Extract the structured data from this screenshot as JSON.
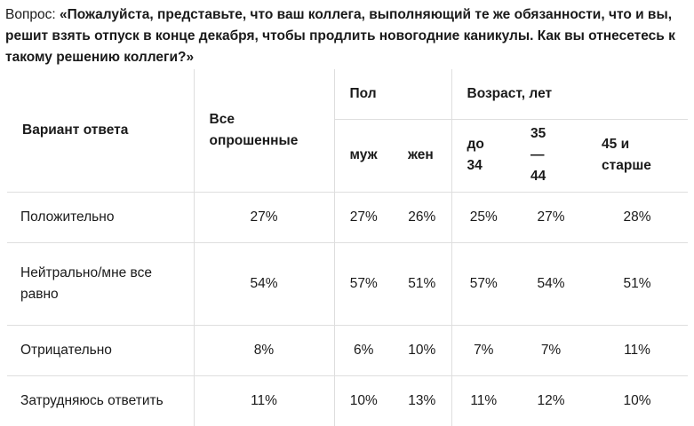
{
  "question": {
    "prefix": "Вопрос: ",
    "text": "«Пожалуйста, представьте, что ваш коллега, выполняющий те же обязанности, что и вы, решит взять отпуск в конце декабря, чтобы продлить новогодние каникулы. Как вы отнесетесь к такому решению коллеги?»"
  },
  "table": {
    "col_answer": "Вариант ответа",
    "col_all": "Все опрошенные",
    "group_sex": "Пол",
    "group_age": "Возраст, лет",
    "sub_male": "муж",
    "sub_female": "жен",
    "sub_age1": "до 34",
    "sub_age2": "35—44",
    "sub_age3": "45 и старше",
    "rows": [
      {
        "label": "Положительно",
        "all": "27%",
        "male": "27%",
        "female": "26%",
        "age1": "25%",
        "age2": "27%",
        "age3": "28%"
      },
      {
        "label": "Нейтрально/мне все равно",
        "all": "54%",
        "male": "57%",
        "female": "51%",
        "age1": "57%",
        "age2": "54%",
        "age3": "51%"
      },
      {
        "label": "Отрицательно",
        "all": "8%",
        "male": "6%",
        "female": "10%",
        "age1": "7%",
        "age2": "7%",
        "age3": "11%"
      },
      {
        "label": "Затрудняюсь ответить",
        "all": "11%",
        "male": "10%",
        "female": "13%",
        "age1": "11%",
        "age2": "12%",
        "age3": "10%"
      }
    ]
  }
}
